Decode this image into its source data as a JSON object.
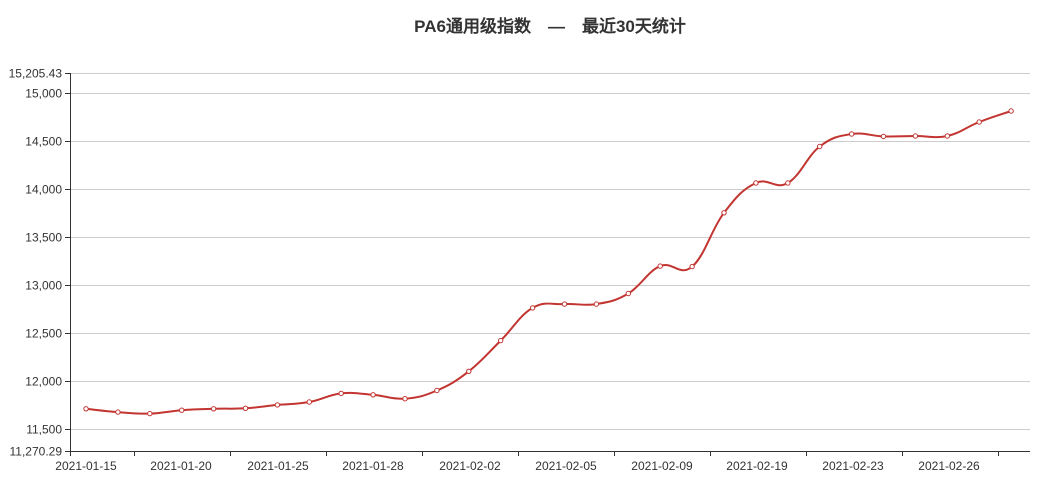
{
  "chart_data": {
    "type": "line",
    "title": "PA6通用级指数　—　最近30天统计",
    "xlabel": "",
    "ylabel": "",
    "ylim": [
      11270.29,
      15205.43
    ],
    "y_ticks": [
      "11,270.29",
      "11,500",
      "12,000",
      "12,500",
      "13,000",
      "13,500",
      "14,000",
      "14,500",
      "15,000",
      "15,205.43"
    ],
    "x_tick_labels": [
      "2021-01-15",
      "2021-01-20",
      "2021-01-25",
      "2021-01-28",
      "2021-02-02",
      "2021-02-05",
      "2021-02-09",
      "2021-02-19",
      "2021-02-23",
      "2021-02-26"
    ],
    "grid": true,
    "legend": "none",
    "line_color": "#c23531",
    "series": [
      {
        "values": [
          11710,
          11675,
          11660,
          11695,
          11710,
          11715,
          11750,
          11780,
          11870,
          11855,
          11815,
          11900,
          12100,
          12420,
          12760,
          12800,
          12800,
          12910,
          13195,
          13190,
          13750,
          14060,
          14060,
          14440,
          14570,
          14545,
          14550,
          14550,
          14695,
          14810
        ]
      }
    ]
  }
}
